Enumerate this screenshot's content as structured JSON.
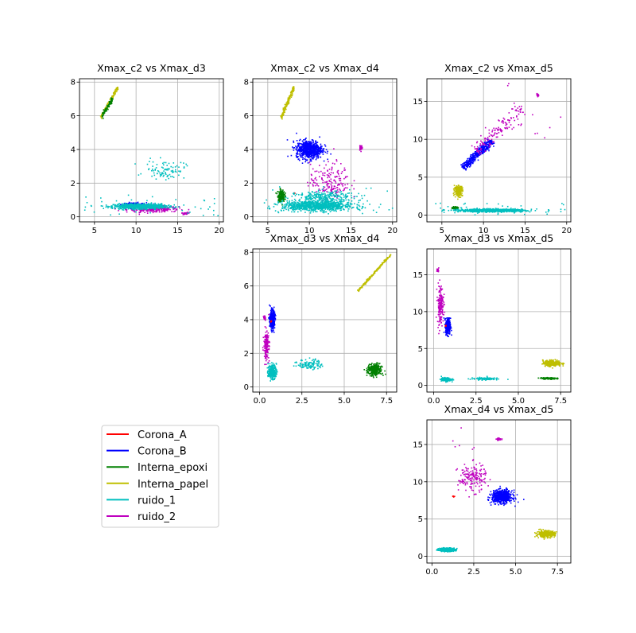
{
  "chart_data": [
    {
      "type": "scatter",
      "title": "Xmax_c2 vs Xmax_d3",
      "xlabel": "",
      "ylabel": "",
      "xlim": [
        3.2,
        20.5
      ],
      "ylim": [
        -0.3,
        8.2
      ],
      "xticks": [
        5,
        10,
        15,
        20
      ],
      "yticks": [
        0,
        2,
        4,
        6,
        8
      ],
      "grid": true,
      "clusters": [
        {
          "series": "Interna_papel",
          "shape": "line",
          "from": [
            5.8,
            5.9
          ],
          "to": [
            7.8,
            7.7
          ],
          "width": 0.1,
          "n": 150
        },
        {
          "series": "Interna_epoxi",
          "shape": "line",
          "from": [
            5.9,
            6.0
          ],
          "to": [
            7.2,
            7.0
          ],
          "width": 0.12,
          "n": 90
        },
        {
          "series": "ruido_2",
          "shape": "blob",
          "cx": 12.0,
          "cy": 0.45,
          "sx": 2.6,
          "sy": 0.15,
          "n": 260
        },
        {
          "series": "ruido_2",
          "shape": "blob",
          "cx": 16.0,
          "cy": 0.2,
          "sx": 0.25,
          "sy": 0.05,
          "n": 30
        },
        {
          "series": "Corona_B",
          "shape": "blob",
          "cx": 9.8,
          "cy": 0.72,
          "sx": 1.2,
          "sy": 0.1,
          "n": 200
        },
        {
          "series": "ruido_1",
          "shape": "blob",
          "cx": 10.5,
          "cy": 0.62,
          "sx": 2.6,
          "sy": 0.12,
          "n": 700
        },
        {
          "series": "ruido_1",
          "shape": "blob",
          "cx": 13.5,
          "cy": 2.8,
          "sx": 2.0,
          "sy": 0.45,
          "n": 90
        },
        {
          "series": "ruido_1",
          "shape": "sparse",
          "xr": [
            3.5,
            20
          ],
          "yr": [
            0.0,
            1.3
          ],
          "n": 40
        }
      ]
    },
    {
      "type": "scatter",
      "title": "Xmax_c2 vs Xmax_d4",
      "xlabel": "",
      "ylabel": "",
      "xlim": [
        3.2,
        20.5
      ],
      "ylim": [
        -0.3,
        8.2
      ],
      "xticks": [
        5,
        10,
        15,
        20
      ],
      "yticks": [
        0,
        2,
        4,
        6,
        8
      ],
      "grid": true,
      "clusters": [
        {
          "series": "Interna_papel",
          "shape": "line",
          "from": [
            6.6,
            5.9
          ],
          "to": [
            8.2,
            7.7
          ],
          "width": 0.12,
          "n": 160
        },
        {
          "series": "Corona_B",
          "shape": "blob",
          "cx": 10.0,
          "cy": 4.0,
          "sx": 1.3,
          "sy": 0.45,
          "n": 650
        },
        {
          "series": "ruido_2",
          "shape": "blob",
          "cx": 12.5,
          "cy": 2.1,
          "sx": 2.0,
          "sy": 0.9,
          "n": 180
        },
        {
          "series": "ruido_2",
          "shape": "blob",
          "cx": 16.2,
          "cy": 4.1,
          "sx": 0.15,
          "sy": 0.12,
          "n": 40
        },
        {
          "series": "Interna_epoxi",
          "shape": "blob",
          "cx": 6.6,
          "cy": 1.25,
          "sx": 0.35,
          "sy": 0.3,
          "n": 140
        },
        {
          "series": "Corona_A",
          "shape": "blob",
          "cx": 8.2,
          "cy": 1.4,
          "sx": 0.05,
          "sy": 0.04,
          "n": 6
        },
        {
          "series": "ruido_1",
          "shape": "blob",
          "cx": 11.0,
          "cy": 0.65,
          "sx": 3.5,
          "sy": 0.25,
          "n": 900
        },
        {
          "series": "ruido_1",
          "shape": "blob",
          "cx": 12.0,
          "cy": 1.2,
          "sx": 3.0,
          "sy": 0.25,
          "n": 220
        },
        {
          "series": "ruido_1",
          "shape": "sparse",
          "xr": [
            3.5,
            20
          ],
          "yr": [
            0.2,
            1.8
          ],
          "n": 40
        }
      ]
    },
    {
      "type": "scatter",
      "title": "Xmax_c2 vs Xmax_d5",
      "xlabel": "",
      "ylabel": "",
      "xlim": [
        3.2,
        20.5
      ],
      "ylim": [
        -0.9,
        18
      ],
      "xticks": [
        5,
        10,
        15,
        20
      ],
      "yticks": [
        0,
        5,
        10,
        15
      ],
      "grid": true,
      "clusters": [
        {
          "series": "Corona_B",
          "shape": "line",
          "from": [
            7.5,
            6.2
          ],
          "to": [
            11.0,
            9.8
          ],
          "width": 0.45,
          "n": 380
        },
        {
          "series": "ruido_2",
          "shape": "line",
          "from": [
            9.0,
            8.5
          ],
          "to": [
            15.0,
            14.0
          ],
          "width": 1.0,
          "n": 140
        },
        {
          "series": "ruido_2",
          "shape": "blob",
          "cx": 16.5,
          "cy": 15.8,
          "sx": 0.12,
          "sy": 0.15,
          "n": 25
        },
        {
          "series": "ruido_2",
          "shape": "sparse",
          "xr": [
            12,
            20
          ],
          "yr": [
            8,
            17.5
          ],
          "n": 12
        },
        {
          "series": "Interna_papel",
          "shape": "blob",
          "cx": 7.0,
          "cy": 3.2,
          "sx": 0.4,
          "sy": 0.55,
          "n": 220
        },
        {
          "series": "Interna_epoxi",
          "shape": "blob",
          "cx": 6.6,
          "cy": 0.95,
          "sx": 0.3,
          "sy": 0.1,
          "n": 80
        },
        {
          "series": "ruido_1",
          "shape": "blob",
          "cx": 11.0,
          "cy": 0.6,
          "sx": 3.2,
          "sy": 0.15,
          "n": 850
        },
        {
          "series": "ruido_1",
          "shape": "sparse",
          "xr": [
            3.5,
            20
          ],
          "yr": [
            0.0,
            1.6
          ],
          "n": 40
        }
      ]
    },
    {
      "type": "scatter",
      "title": "Xmax_d3 vs Xmax_d4",
      "xlabel": "",
      "ylabel": "",
      "xlim": [
        -0.4,
        8.1
      ],
      "ylim": [
        -0.3,
        8.2
      ],
      "xticks": [
        0.0,
        2.5,
        5.0,
        7.5
      ],
      "yticks": [
        0,
        2,
        4,
        6,
        8
      ],
      "grid": true,
      "clusters": [
        {
          "series": "Interna_papel",
          "shape": "line",
          "from": [
            5.8,
            5.7
          ],
          "to": [
            7.8,
            7.9
          ],
          "width": 0.05,
          "n": 180
        },
        {
          "series": "Corona_B",
          "shape": "blob",
          "cx": 0.75,
          "cy": 4.0,
          "sx": 0.12,
          "sy": 0.45,
          "n": 380
        },
        {
          "series": "ruido_2",
          "shape": "blob",
          "cx": 0.4,
          "cy": 2.5,
          "sx": 0.12,
          "sy": 0.7,
          "n": 180
        },
        {
          "series": "ruido_2",
          "shape": "blob",
          "cx": 0.3,
          "cy": 4.1,
          "sx": 0.05,
          "sy": 0.1,
          "n": 25
        },
        {
          "series": "Corona_A",
          "shape": "blob",
          "cx": 0.68,
          "cy": 3.9,
          "sx": 0.03,
          "sy": 0.05,
          "n": 6
        },
        {
          "series": "ruido_1",
          "shape": "blob",
          "cx": 0.75,
          "cy": 0.9,
          "sx": 0.2,
          "sy": 0.35,
          "n": 260
        },
        {
          "series": "ruido_1",
          "shape": "blob",
          "cx": 3.0,
          "cy": 1.35,
          "sx": 0.6,
          "sy": 0.25,
          "n": 110
        },
        {
          "series": "Interna_epoxi",
          "shape": "blob",
          "cx": 6.8,
          "cy": 1.0,
          "sx": 0.35,
          "sy": 0.3,
          "n": 300
        }
      ]
    },
    {
      "type": "scatter",
      "title": "Xmax_d3 vs Xmax_d5",
      "xlabel": "",
      "ylabel": "",
      "xlim": [
        -0.4,
        8.1
      ],
      "ylim": [
        -0.9,
        18.5
      ],
      "xticks": [
        0.0,
        2.5,
        5.0,
        7.5
      ],
      "yticks": [
        0,
        5,
        10,
        15
      ],
      "grid": true,
      "clusters": [
        {
          "series": "Corona_B",
          "shape": "blob",
          "cx": 0.85,
          "cy": 8.0,
          "sx": 0.12,
          "sy": 0.9,
          "n": 320
        },
        {
          "series": "ruido_2",
          "shape": "blob",
          "cx": 0.4,
          "cy": 11.0,
          "sx": 0.15,
          "sy": 2.2,
          "n": 170
        },
        {
          "series": "ruido_2",
          "shape": "blob",
          "cx": 0.25,
          "cy": 15.6,
          "sx": 0.05,
          "sy": 0.2,
          "n": 25
        },
        {
          "series": "Corona_A",
          "shape": "blob",
          "cx": 0.7,
          "cy": 8.1,
          "sx": 0.03,
          "sy": 0.1,
          "n": 6
        },
        {
          "series": "ruido_1",
          "shape": "blob",
          "cx": 0.75,
          "cy": 0.8,
          "sx": 0.25,
          "sy": 0.2,
          "n": 160
        },
        {
          "series": "ruido_1",
          "shape": "blob",
          "cx": 3.0,
          "cy": 0.9,
          "sx": 0.7,
          "sy": 0.15,
          "n": 90
        },
        {
          "series": "Interna_papel",
          "shape": "blob",
          "cx": 7.0,
          "cy": 3.0,
          "sx": 0.45,
          "sy": 0.35,
          "n": 260
        },
        {
          "series": "Interna_epoxi",
          "shape": "blob",
          "cx": 6.8,
          "cy": 0.95,
          "sx": 0.35,
          "sy": 0.08,
          "n": 180
        }
      ]
    },
    {
      "type": "scatter",
      "title": "Xmax_d4 vs Xmax_d5",
      "xlabel": "",
      "ylabel": "",
      "xlim": [
        -0.3,
        8.3
      ],
      "ylim": [
        -0.9,
        18.3
      ],
      "xticks": [
        0.0,
        2.5,
        5.0,
        7.5
      ],
      "yticks": [
        0,
        5,
        10,
        15
      ],
      "grid": true,
      "clusters": [
        {
          "series": "Corona_B",
          "shape": "blob",
          "cx": 4.2,
          "cy": 8.0,
          "sx": 0.5,
          "sy": 0.7,
          "n": 650
        },
        {
          "series": "ruido_2",
          "shape": "blob",
          "cx": 2.4,
          "cy": 10.5,
          "sx": 0.7,
          "sy": 1.5,
          "n": 170
        },
        {
          "series": "ruido_2",
          "shape": "blob",
          "cx": 4.0,
          "cy": 15.7,
          "sx": 0.12,
          "sy": 0.12,
          "n": 30
        },
        {
          "series": "ruido_2",
          "shape": "sparse",
          "xr": [
            1.0,
            3.2
          ],
          "yr": [
            14,
            17.5
          ],
          "n": 6
        },
        {
          "series": "Corona_A",
          "shape": "blob",
          "cx": 1.3,
          "cy": 8.0,
          "sx": 0.04,
          "sy": 0.06,
          "n": 6
        },
        {
          "series": "ruido_1",
          "shape": "blob",
          "cx": 0.9,
          "cy": 0.9,
          "sx": 0.4,
          "sy": 0.18,
          "n": 420
        },
        {
          "series": "Interna_papel",
          "shape": "blob",
          "cx": 6.8,
          "cy": 3.0,
          "sx": 0.45,
          "sy": 0.35,
          "n": 320
        }
      ]
    }
  ],
  "legend": {
    "placement": "lower-left",
    "entries": [
      {
        "name": "Corona_A",
        "color": "#ff0000"
      },
      {
        "name": "Corona_B",
        "color": "#0000ff"
      },
      {
        "name": "Interna_epoxi",
        "color": "#008000"
      },
      {
        "name": "Interna_papel",
        "color": "#bfbf00"
      },
      {
        "name": "ruido_1",
        "color": "#00bfbf"
      },
      {
        "name": "ruido_2",
        "color": "#bf00bf"
      }
    ]
  }
}
